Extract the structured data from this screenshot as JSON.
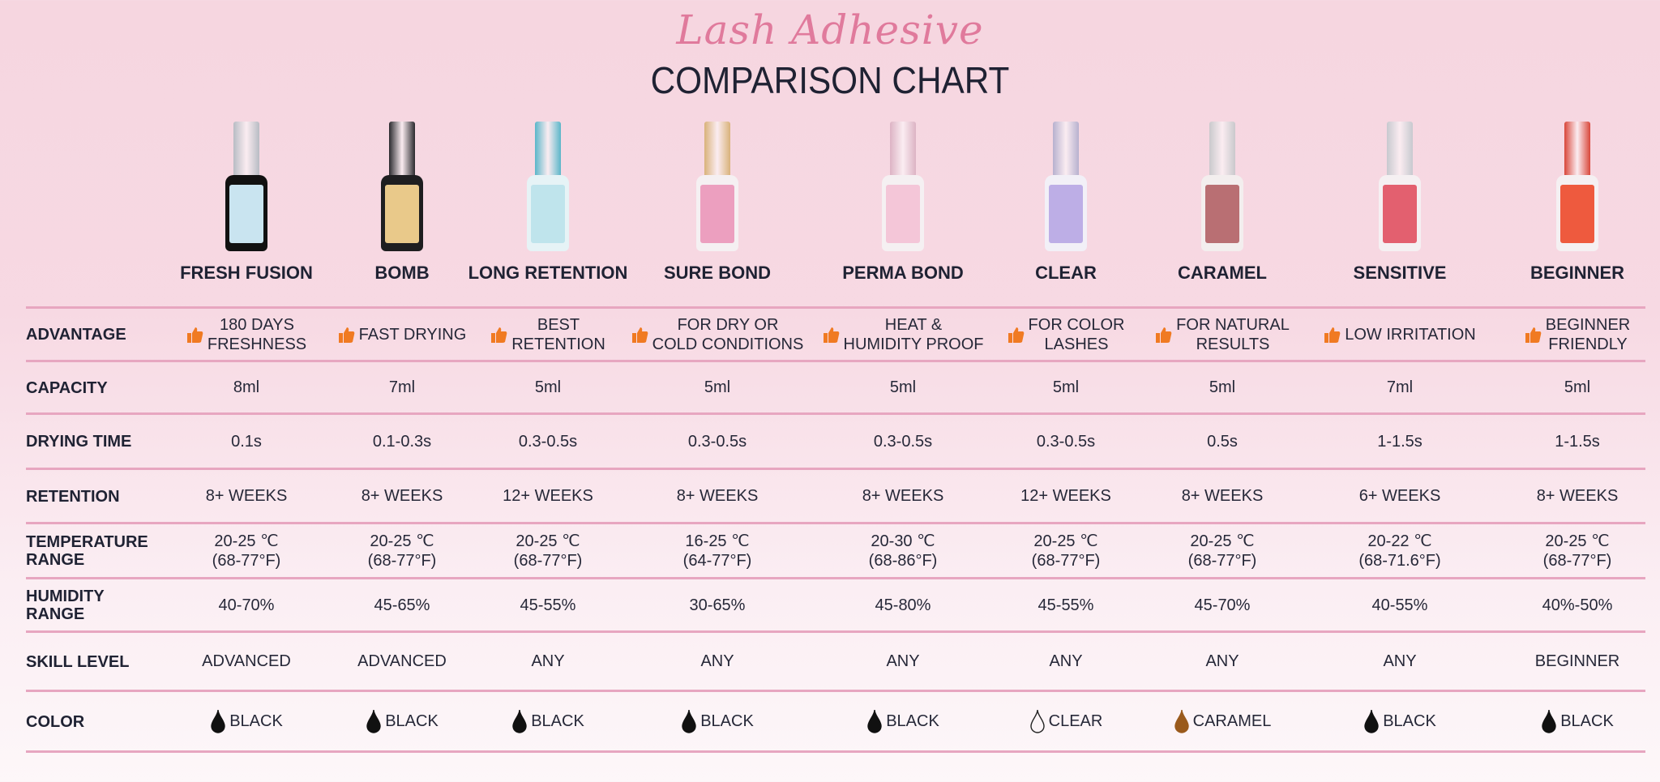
{
  "header": {
    "script_title": "Lash Adhesive",
    "title": "COMPARISON CHART"
  },
  "products": [
    {
      "name": "FRESH FUSION",
      "cap": "#b8bcc4",
      "body": "#111111",
      "label": "#c9e4f0"
    },
    {
      "name": "BOMB",
      "cap": "#2a2a2e",
      "body": "#1e1e20",
      "label": "#e9c98a"
    },
    {
      "name": "LONG RETENTION",
      "cap": "#5bb6c9",
      "body": "#e6f3f6",
      "label": "#bfe4ec"
    },
    {
      "name": "SURE BOND",
      "cap": "#d9b27a",
      "body": "#f5f0f2",
      "label": "#ec9fbf"
    },
    {
      "name": "PERMA BOND",
      "cap": "#dcb3c4",
      "body": "#f5f0f2",
      "label": "#f4c6d8"
    },
    {
      "name": "CLEAR",
      "cap": "#b7b1cf",
      "body": "#f2f0f7",
      "label": "#bdaee6"
    },
    {
      "name": "CARAMEL",
      "cap": "#c9c9cc",
      "body": "#f3eeee",
      "label": "#b96f73"
    },
    {
      "name": "SENSITIVE",
      "cap": "#c7c9cf",
      "body": "#f5f0f2",
      "label": "#e3606f"
    },
    {
      "name": "BEGINNER",
      "cap": "#d9473a",
      "body": "#f5f0f2",
      "label": "#ee5a3e"
    }
  ],
  "rows": [
    {
      "label": [
        "ADVANTAGE"
      ],
      "icon": "thumbs-up-icon",
      "values": [
        [
          "180 DAYS",
          "FRESHNESS"
        ],
        [
          "FAST DRYING"
        ],
        [
          "BEST",
          "RETENTION"
        ],
        [
          "FOR DRY OR",
          "COLD CONDITIONS"
        ],
        [
          "HEAT &",
          "HUMIDITY PROOF"
        ],
        [
          "FOR COLOR",
          "LASHES"
        ],
        [
          "FOR NATURAL",
          "RESULTS"
        ],
        [
          "LOW IRRITATION"
        ],
        [
          "BEGINNER",
          "FRIENDLY"
        ]
      ]
    },
    {
      "label": [
        "CAPACITY"
      ],
      "values": [
        [
          "8ml"
        ],
        [
          "7ml"
        ],
        [
          "5ml"
        ],
        [
          "5ml"
        ],
        [
          "5ml"
        ],
        [
          "5ml"
        ],
        [
          "5ml"
        ],
        [
          "7ml"
        ],
        [
          "5ml"
        ]
      ]
    },
    {
      "label": [
        "DRYING TIME"
      ],
      "values": [
        [
          "0.1s"
        ],
        [
          "0.1-0.3s"
        ],
        [
          "0.3-0.5s"
        ],
        [
          "0.3-0.5s"
        ],
        [
          "0.3-0.5s"
        ],
        [
          "0.3-0.5s"
        ],
        [
          "0.5s"
        ],
        [
          "1-1.5s"
        ],
        [
          "1-1.5s"
        ]
      ]
    },
    {
      "label": [
        "RETENTION"
      ],
      "values": [
        [
          "8+ WEEKS"
        ],
        [
          "8+ WEEKS"
        ],
        [
          "12+ WEEKS"
        ],
        [
          "8+ WEEKS"
        ],
        [
          "8+ WEEKS"
        ],
        [
          "12+ WEEKS"
        ],
        [
          "8+ WEEKS"
        ],
        [
          "6+ WEEKS"
        ],
        [
          "8+ WEEKS"
        ]
      ]
    },
    {
      "label": [
        "TEMPERATURE",
        "RANGE"
      ],
      "values": [
        [
          "20-25 ℃",
          "(68-77°F)"
        ],
        [
          "20-25 ℃",
          "(68-77°F)"
        ],
        [
          "20-25 ℃",
          "(68-77°F)"
        ],
        [
          "16-25 ℃",
          "(64-77°F)"
        ],
        [
          "20-30 ℃",
          "(68-86°F)"
        ],
        [
          "20-25 ℃",
          "(68-77°F)"
        ],
        [
          "20-25 ℃",
          "(68-77°F)"
        ],
        [
          "20-22 ℃",
          "(68-71.6°F)"
        ],
        [
          "20-25 ℃",
          "(68-77°F)"
        ]
      ]
    },
    {
      "label": [
        "HUMIDITY",
        "RANGE"
      ],
      "values": [
        [
          "40-70%"
        ],
        [
          "45-65%"
        ],
        [
          "45-55%"
        ],
        [
          "30-65%"
        ],
        [
          "45-80%"
        ],
        [
          "45-55%"
        ],
        [
          "45-70%"
        ],
        [
          "40-55%"
        ],
        [
          "40%-50%"
        ]
      ]
    },
    {
      "label": [
        "SKILL LEVEL"
      ],
      "values": [
        [
          "ADVANCED"
        ],
        [
          "ADVANCED"
        ],
        [
          "ANY"
        ],
        [
          "ANY"
        ],
        [
          "ANY"
        ],
        [
          "ANY"
        ],
        [
          "ANY"
        ],
        [
          "ANY"
        ],
        [
          "BEGINNER"
        ]
      ]
    },
    {
      "label": [
        "COLOR"
      ],
      "icon": "drop-icon",
      "values": [
        [
          "BLACK"
        ],
        [
          "BLACK"
        ],
        [
          "BLACK"
        ],
        [
          "BLACK"
        ],
        [
          "BLACK"
        ],
        [
          "CLEAR"
        ],
        [
          "CARAMEL"
        ],
        [
          "BLACK"
        ],
        [
          "BLACK"
        ]
      ],
      "drop_colors": [
        "#111111",
        "#111111",
        "#111111",
        "#111111",
        "#111111",
        "outline",
        "#9a5a1c",
        "#111111",
        "#111111"
      ]
    }
  ],
  "colors": {
    "accent": "#e07a9c",
    "divider": "#e7a6c0",
    "thumb": "#f07a22",
    "text": "#1f2233"
  }
}
